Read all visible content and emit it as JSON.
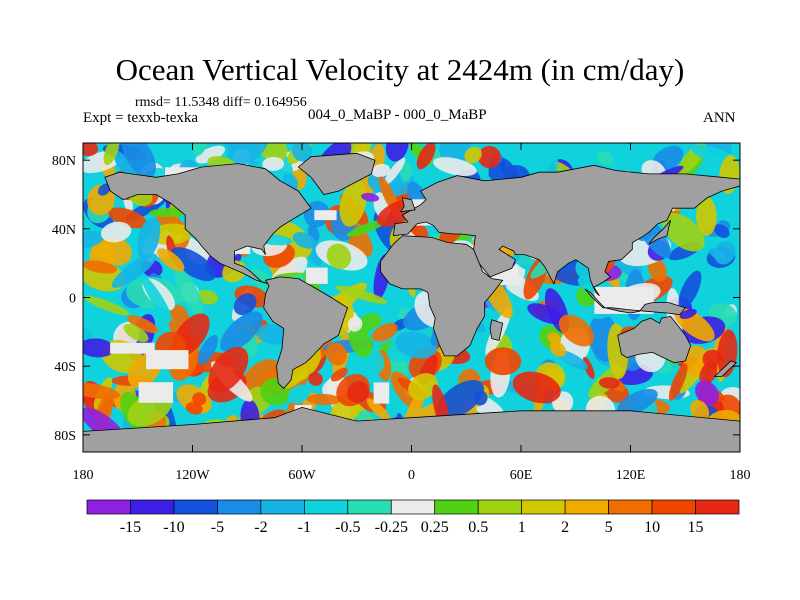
{
  "chart_data": {
    "type": "heatmap",
    "title": "Ocean Vertical Velocity at 2424m (in cm/day)",
    "stats": "rmsd= 11.5348 diff= 0.164956",
    "experiment": "Expt = texxb-texka",
    "comparison": "004_0_MaBP - 000_0_MaBP",
    "season": "ANN",
    "projection": "cylindrical equidistant",
    "x_ticks": [
      "180",
      "120W",
      "60W",
      "0",
      "60E",
      "120E",
      "180"
    ],
    "y_ticks": [
      "80N",
      "40N",
      "0",
      "40S",
      "80S"
    ],
    "xlim": [
      -180,
      180
    ],
    "ylim": [
      -90,
      90
    ],
    "land_color": "#a0a0a0",
    "colorbar": {
      "labels": [
        "-15",
        "-10",
        "-5",
        "-2",
        "-1",
        "-0.5",
        "-0.25",
        "0.25",
        "0.5",
        "1",
        "2",
        "5",
        "10",
        "15"
      ],
      "colors": [
        "#9020e0",
        "#3c1ee6",
        "#1450dc",
        "#1a8ce6",
        "#16b4e6",
        "#10d2dc",
        "#28dcb4",
        "#ebebeb",
        "#50d214",
        "#a0d214",
        "#d2c800",
        "#f0aa00",
        "#f06e00",
        "#f04600",
        "#e62814"
      ]
    }
  }
}
